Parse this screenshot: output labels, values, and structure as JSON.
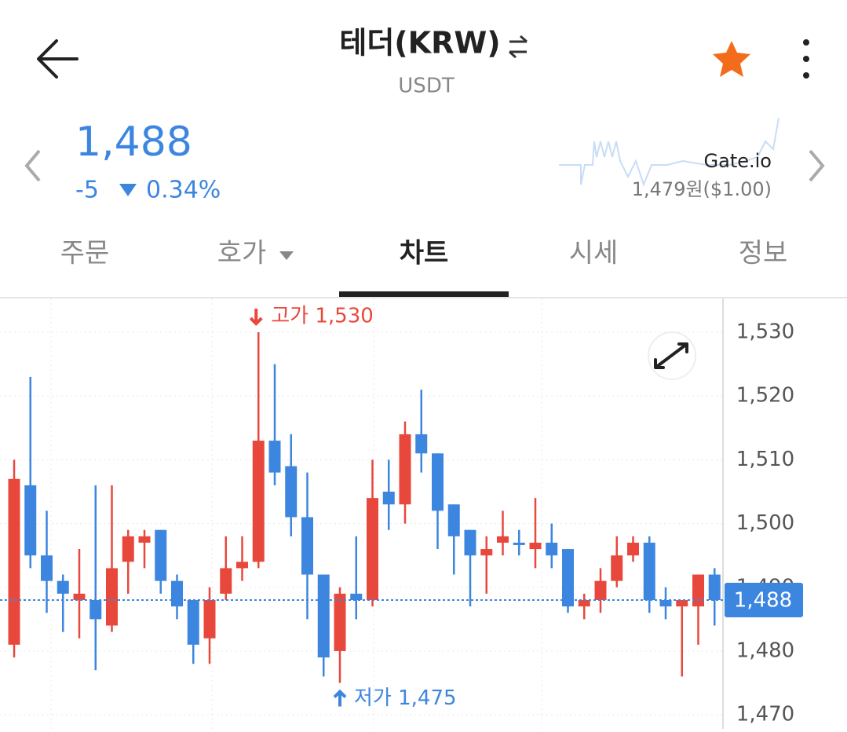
{
  "header": {
    "title": "테더(KRW)",
    "subtitle": "USDT"
  },
  "ticker": {
    "price": "1,488",
    "change": "-5",
    "change_rate": "0.34%",
    "exchange": "Gate.io",
    "exchange_price": "1,479원($1.00)"
  },
  "tabs": [
    "주문",
    "호가",
    "차트",
    "시세",
    "정보"
  ],
  "chart_data": {
    "type": "candlestick",
    "open": [
      1481,
      1506,
      1495,
      1491,
      1488,
      1488,
      1484,
      1494,
      1497,
      1499,
      1491,
      1488,
      1482,
      1489,
      1493,
      1494,
      1513,
      1509,
      1501,
      1492,
      1480,
      1489,
      1488,
      1505,
      1503,
      1514,
      1511,
      1503,
      1499,
      1495,
      1497,
      1497,
      1496,
      1497,
      1496,
      1487,
      1488,
      1491,
      1495,
      1497,
      1488,
      1487,
      1487,
      1492
    ],
    "high": [
      1510,
      1523,
      1502,
      1492,
      1496,
      1506,
      1506,
      1499,
      1499,
      1499,
      1492,
      1488,
      1490,
      1498,
      1498,
      1530,
      1525,
      1514,
      1508,
      1492,
      1490,
      1498,
      1510,
      1510,
      1516,
      1521,
      1511,
      1503,
      1499,
      1498,
      1502,
      1499,
      1504,
      1500,
      1496,
      1489,
      1493,
      1498,
      1498,
      1498,
      1490,
      1488,
      1492,
      1493
    ],
    "low": [
      1479,
      1493,
      1486,
      1483,
      1482,
      1477,
      1483,
      1489,
      1493,
      1489,
      1485,
      1478,
      1478,
      1488,
      1491,
      1493,
      1506,
      1498,
      1485,
      1476,
      1475,
      1485,
      1487,
      1499,
      1500,
      1508,
      1496,
      1492,
      1487,
      1489,
      1495,
      1495,
      1493,
      1493,
      1486,
      1485,
      1486,
      1490,
      1494,
      1486,
      1485,
      1476,
      1481,
      1484
    ],
    "close": [
      1507,
      1495,
      1491,
      1489,
      1489,
      1485,
      1493,
      1498,
      1498,
      1491,
      1487,
      1481,
      1488,
      1493,
      1494,
      1513,
      1508,
      1501,
      1492,
      1479,
      1489,
      1488,
      1504,
      1503,
      1514,
      1511,
      1502,
      1498,
      1495,
      1496,
      1498,
      1497,
      1497,
      1495,
      1487,
      1488,
      1491,
      1495,
      1497,
      1488,
      1487,
      1488,
      1492,
      1488
    ],
    "ylim": [
      1467.8,
      1535.3
    ],
    "yticks": [
      {
        "value": 1470,
        "label": "1,470"
      },
      {
        "value": 1480,
        "label": "1,480"
      },
      {
        "value": 1490,
        "label": "1,490"
      },
      {
        "value": 1500,
        "label": "1,500"
      },
      {
        "value": 1510,
        "label": "1,510"
      },
      {
        "value": 1520,
        "label": "1,520"
      },
      {
        "value": 1530,
        "label": "1,530"
      }
    ],
    "up_color": "#e8483c",
    "down_color": "#3d86e0",
    "grid": true,
    "current": {
      "value": 1488,
      "label": "1,488"
    },
    "high_label": "고가 1,530",
    "low_label": "저가 1,475"
  }
}
